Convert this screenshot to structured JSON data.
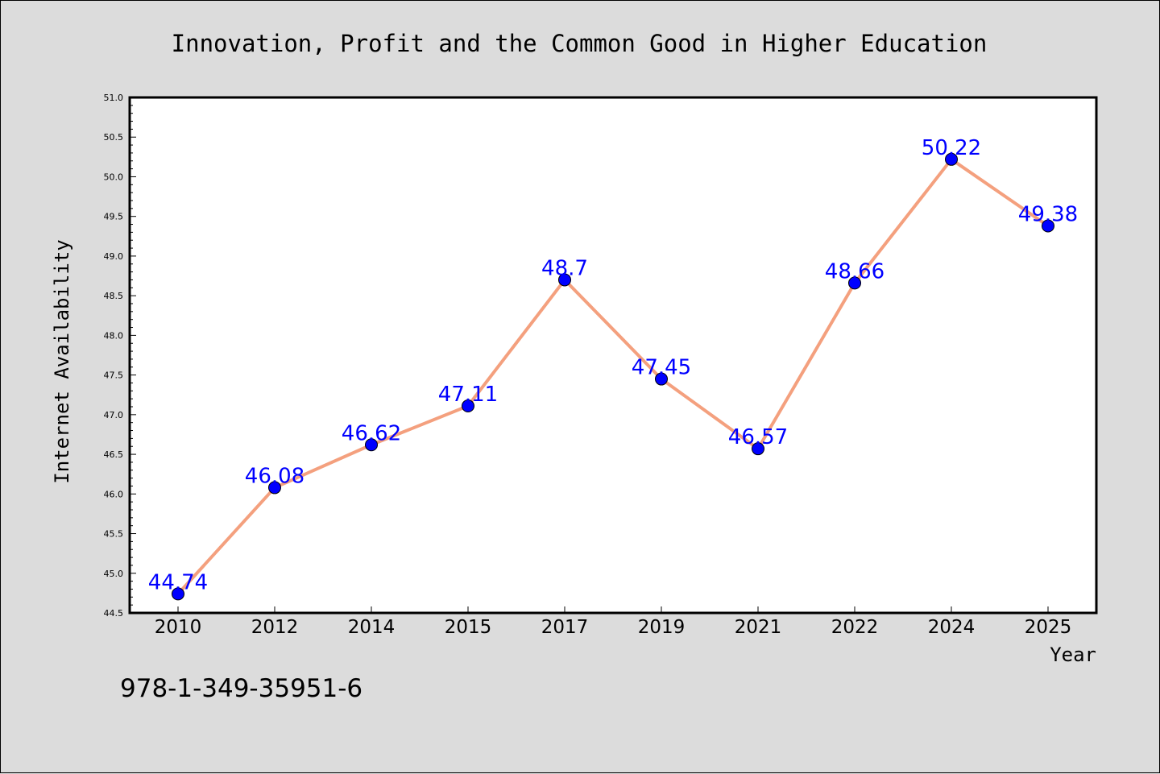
{
  "chart_data": {
    "type": "line",
    "title": "Innovation, Profit and the Common Good in Higher Education",
    "xlabel": "Year",
    "ylabel": "Internet Availability",
    "categories": [
      "2010",
      "2012",
      "2014",
      "2015",
      "2017",
      "2019",
      "2021",
      "2022",
      "2024",
      "2025"
    ],
    "series": [
      {
        "values": [
          44.74,
          46.08,
          46.62,
          47.11,
          48.7,
          47.45,
          46.57,
          48.66,
          50.22,
          49.38
        ],
        "data_labels": [
          "44.74",
          "46.08",
          "46.62",
          "47.11",
          "48.7",
          "47.45",
          "46.57",
          "48.66",
          "50.22",
          "49.38"
        ],
        "line_color": "#f4a07e",
        "marker_color": "#0000ff"
      }
    ],
    "ylim": [
      44.5,
      51.0
    ],
    "yticks": [
      "44.5",
      "45.0",
      "45.5",
      "46.0",
      "46.5",
      "47.0",
      "47.5",
      "48.0",
      "48.5",
      "49.0",
      "49.5",
      "50.0",
      "50.5",
      "51.0"
    ],
    "grid": false,
    "legend": "none"
  },
  "footer": {
    "isbn": "978-1-349-35951-6"
  },
  "colors": {
    "background": "#dcdcdc",
    "plot_area": "#ffffff",
    "line": "#f4a07e",
    "marker": "#0000ff",
    "data_label": "#0000ff"
  }
}
